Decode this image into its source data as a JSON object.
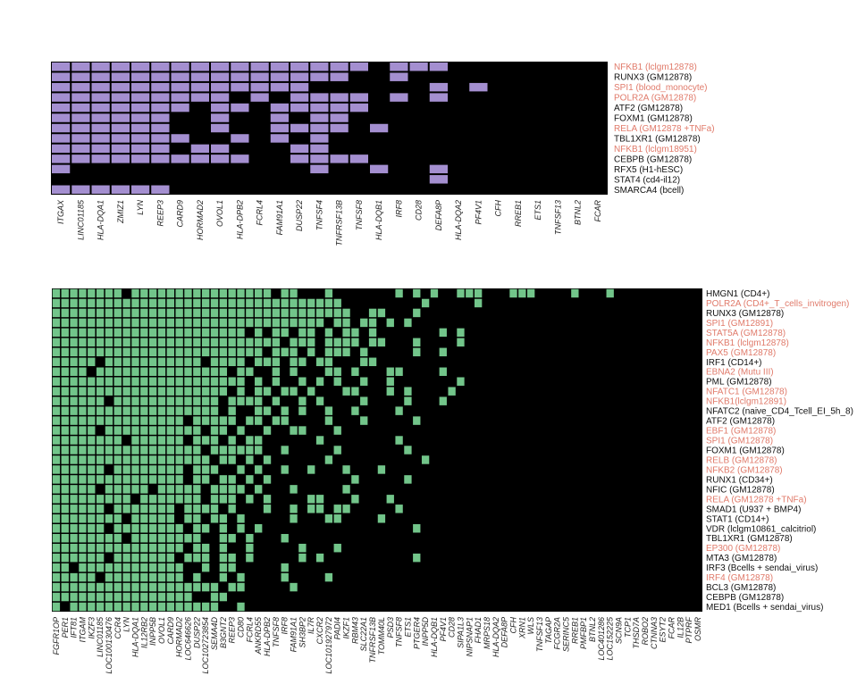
{
  "colors": {
    "background": "#000000",
    "top_cell": "#a48fd0",
    "bottom_cell": "#72c58a",
    "label_default": "#111111",
    "label_highlight": "#e07a6a"
  },
  "chart_data": [
    {
      "type": "heatmap",
      "panel": "top",
      "columns": [
        "ITGAX",
        "LINC01185",
        "HLA-DQA1",
        "ZMIZ1",
        "LYN",
        "REEP3",
        "CARD9",
        "HORMAD2",
        "OVOL1",
        "HLA-DPB2",
        "FCRL4",
        "FAM91A1",
        "DUSP22",
        "TNFSF4",
        "TNFRSF13B",
        "TNFSF8",
        "HLA-DQB1",
        "IRF8",
        "CD28",
        "DEFA8P",
        "HLA-DQA2",
        "PF4V1",
        "CFH",
        "RREB1",
        "ETS1",
        "TNFSF13",
        "BTNL2",
        "FCAR"
      ],
      "rows": [
        {
          "label": "NFKB1 (lclgm12878)",
          "highlight": true
        },
        {
          "label": "RUNX3 (GM12878)",
          "highlight": false
        },
        {
          "label": "SPI1 (blood_monocyte)",
          "highlight": true
        },
        {
          "label": "POLR2A (GM12878)",
          "highlight": true
        },
        {
          "label": "ATF2 (GM12878)",
          "highlight": false
        },
        {
          "label": "FOXM1 (GM12878)",
          "highlight": false
        },
        {
          "label": "RELA (GM12878 +TNFa)",
          "highlight": true
        },
        {
          "label": "TBL1XR1 (GM12878)",
          "highlight": false
        },
        {
          "label": "NFKB1 (lclgm18951)",
          "highlight": true
        },
        {
          "label": "CEBPB (GM12878)",
          "highlight": false
        },
        {
          "label": "RFX5 (H1-hESC)",
          "highlight": false
        },
        {
          "label": "STAT4 (cd4-il12)",
          "highlight": false
        },
        {
          "label": "SMARCA4 (bcell)",
          "highlight": false
        }
      ],
      "matrix": [
        "1111111111111111011100000000",
        "1111111111111110010000000000",
        "1111111111111000000101000000",
        "1111111110101111010100000000",
        "1111111011011111000000000000",
        "1111110010010110000000000000",
        "1111110010011110100000000000",
        "1111111001010100000000000000",
        "1111110110001100000000000000",
        "1111111111001111000000000000",
        "1000000000000100100100000000",
        "0000000000000000000100000000",
        "1111110000000000000000000000"
      ]
    },
    {
      "type": "heatmap",
      "panel": "bottom",
      "columns": [
        "FGFR1OP",
        "PER1",
        "IFT81",
        "ITGAM",
        "IKZF3",
        "LINC01185",
        "LOC100130476",
        "CCR4",
        "LYN",
        "HLA-DQA1",
        "IL12RB2",
        "INPP5B",
        "OVOL1",
        "CARD9",
        "HORMAD2",
        "LOC646626",
        "DUSP22",
        "LOC102723854",
        "SEMA4D",
        "B3GNT2",
        "REEP3",
        "CD80",
        "FCRL4",
        "ANKRD55",
        "HLA-DPB2",
        "TNFSF8",
        "IRF8",
        "FAM91A1",
        "SH3BP2",
        "IL7R",
        "CXCR2",
        "LOC101927972",
        "PADI4",
        "IKZF1",
        "RBM43",
        "SLC22A1",
        "TNFRSF13B",
        "TOMM40L",
        "PSD3",
        "TNFSF8",
        "ETS1",
        "PTGER4",
        "INPP5D",
        "HLA-DQB1",
        "PF4V1",
        "CD28",
        "SIPA1L3",
        "NIPSNAP1",
        "FHAD1",
        "MRPS18",
        "HLA-DQA2",
        "DEFA8P",
        "CFH",
        "XRN1",
        "WLS",
        "TNFSF13",
        "TAGAP",
        "FCGR2A",
        "SERINC5",
        "RREB1",
        "PMFBP1",
        "BTNL2",
        "LOC401286",
        "LOC152225",
        "SCN9A",
        "TCP1",
        "THSD7A",
        "ROBO2",
        "CTNNA3",
        "ESYT2",
        "FCAR",
        "IL12B",
        "PTPRF",
        "OSMR"
      ],
      "rows": [
        {
          "label": "HMGN1 (CD4+)",
          "highlight": false
        },
        {
          "label": "POLR2A (CD4+_T_cells_invitrogen)",
          "highlight": true
        },
        {
          "label": "RUNX3 (GM12878)",
          "highlight": false
        },
        {
          "label": "SPI1 (GM12891)",
          "highlight": true
        },
        {
          "label": "STAT5A (GM12878)",
          "highlight": true
        },
        {
          "label": "NFKB1 (lclgm12878)",
          "highlight": true
        },
        {
          "label": "PAX5 (GM12878)",
          "highlight": true
        },
        {
          "label": "IRF1 (CD14+)",
          "highlight": false
        },
        {
          "label": "EBNA2 (Mutu III)",
          "highlight": true
        },
        {
          "label": "PML (GM12878)",
          "highlight": false
        },
        {
          "label": "NFATC1 (GM12878)",
          "highlight": true
        },
        {
          "label": "NFKB1(lclgm12891)",
          "highlight": true
        },
        {
          "label": "NFATC2 (naive_CD4_Tcell_EI_5h_8)",
          "highlight": false
        },
        {
          "label": "ATF2 (GM12878)",
          "highlight": false
        },
        {
          "label": "EBF1 (GM12878)",
          "highlight": true
        },
        {
          "label": "SPI1 (GM12878)",
          "highlight": true
        },
        {
          "label": "FOXM1 (GM12878)",
          "highlight": false
        },
        {
          "label": "RELB (GM12878)",
          "highlight": true
        },
        {
          "label": "NFKB2 (GM12878)",
          "highlight": true
        },
        {
          "label": "RUNX1 (CD34+)",
          "highlight": false
        },
        {
          "label": "NFIC (GM12878)",
          "highlight": false
        },
        {
          "label": "RELA (GM12878 +TNFa)",
          "highlight": true
        },
        {
          "label": "SMAD1 (U937 + BMP4)",
          "highlight": false
        },
        {
          "label": "STAT1 (CD14+)",
          "highlight": false
        },
        {
          "label": "VDR (lclgm10861_calcitriol)",
          "highlight": false
        },
        {
          "label": "TBL1XR1 (GM12878)",
          "highlight": false
        },
        {
          "label": "EP300 (GM12878)",
          "highlight": true
        },
        {
          "label": "MTA3 (GM12878)",
          "highlight": false
        },
        {
          "label": "IRF3 (Bcells + sendai_virus)",
          "highlight": false
        },
        {
          "label": "IRF4 (GM12878)",
          "highlight": true
        },
        {
          "label": "BCL3 (GM12878)",
          "highlight": false
        },
        {
          "label": "CEBPB (GM12878)",
          "highlight": false
        },
        {
          "label": "MED1 (Bcells + sendai_virus)",
          "highlight": false
        }
      ],
      "matrix": [
        "11111111011111111111111110110001000000010101001110001110000100010000000000",
        "11111111111111111111111111111111100000000010000010000000000000000000000000",
        "11111111111111111111111111111111110011000100000000000000000000000000000000",
        "11111111111111111111111111111110110110101000000000000000000000000000000000",
        "11111111111111111111110101101101011010000000101000000000000000000000000000",
        "11111111111111111111111111011101111011000100001000000000000000000000000000",
        "11111111111111111111111101110101110100000100100000000000000000000000000000",
        "11111011111111111011110111011011000110000000000000000000000000000000000000",
        "11110111111111111111011001010001101000110000100000000000000000000000000000",
        "11111111111111111111110101001010100100100000001000000000000000000000000000",
        "11111111111111111111010110110100011000101000010000000000000000000000000000",
        "11111101111111111110111101001010000100001000100000000000000000000000000000",
        "11111111111111111110100110101001001000010000000000000000000000000000000000",
        "11111111111111101111101101100001000100000100000000000000000000000000000000",
        "11111011111111111011010010011000100000000000000000000000000000000000000000",
        "11111111011111101110101100000010000000010000000000000000000000000000000000",
        "11111111111111111011111100100000100000001000000000000000000000000000000000",
        "11111111111111111101101010000001000000000010000000000000000000000000000000",
        "11111101111111101110010100100100010001000000000000000000000000000000000000",
        "11111111111111101101101010000000001000001000000000000000000000000000000000",
        "11111011111011111011110100010000010000000000000000000000000000000000000000",
        "11111111101111111011101010000110001000100000000000000000000000000000000000",
        "11111101111111011110100010010110110000010000000000000000000000000000000000",
        "11111111011111011011010000010001100001000000000000000000000000000000000000",
        "11111101111111101101010100000000000000000100000000000000000000000000000000",
        "11111111011111111001101000100000000000000000000000000000000000000000000000",
        "11111111111111101101001000001000100000000000000000000000000000000000000000",
        "11111101111111011101101000001010000000000100000000000000000000000000000000",
        "11011111111111100101100000100000000000000000000000000000000000000000000000",
        "11111011111111101001010000100001000000000000000000000000000000000000000000",
        "11111111111111111110110000010000000000000000000000000000000000000000000000",
        "11111111111111110011000000000000000000000000000000000000000000000000000000",
        "10111111111111111110010000000000000000000000000000000000000000000000000000"
      ]
    }
  ]
}
